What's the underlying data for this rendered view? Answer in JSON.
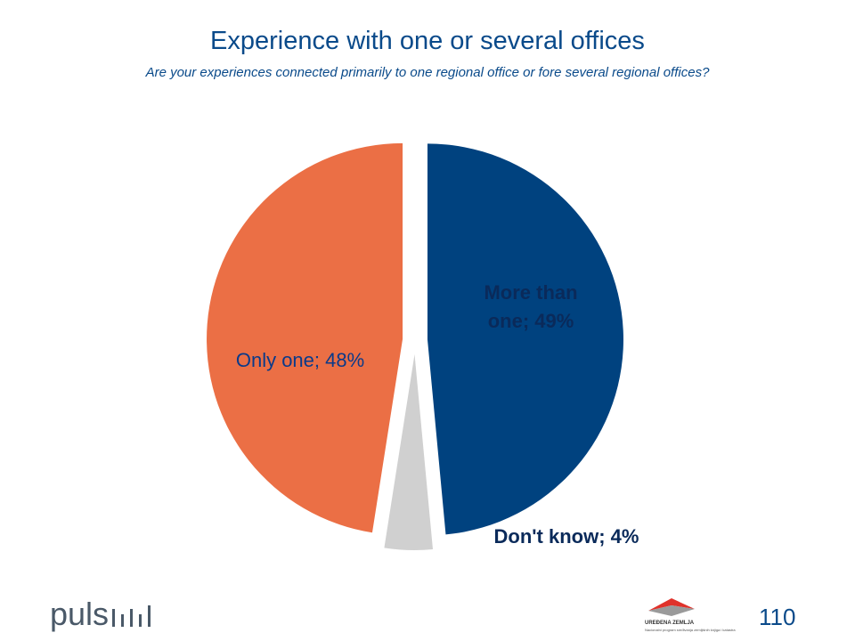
{
  "slide": {
    "title": "Experience with one or several offices",
    "subtitle": "Are your experiences connected primarily to one regional office or fore several regional offices?",
    "page_number": "110"
  },
  "footer": {
    "brand_logo_text": "puls",
    "partner_name": "UREĐENA ZEMLJA",
    "partner_subtitle": "Nacionalni program sređivanja zemljišnih knjiga i katastra"
  },
  "chart_data": {
    "type": "pie",
    "title": "Experience with one or several offices",
    "subtitle": "Are your experiences connected primarily to one regional office or fore several regional offices?",
    "slices": [
      {
        "label": "More than one; 49%",
        "name": "More than one",
        "value": 49,
        "color": "#00427f",
        "label_lines": [
          "More than",
          "one; 49%"
        ],
        "label_color": "#0a2a5a",
        "label_weight": "bold"
      },
      {
        "label": "Don't know; 4%",
        "name": "Don't know",
        "value": 4,
        "color": "#d0d0d0",
        "label_lines": [
          "Don't know; 4%"
        ],
        "label_color": "#0a2a5a",
        "label_weight": "bold"
      },
      {
        "label": "Only one; 48%",
        "name": "Only one",
        "value": 48,
        "color": "#eb6f45",
        "label_lines": [
          "Only one; 48%"
        ],
        "label_color": "#0a3a8a",
        "label_weight": "normal"
      }
    ],
    "start_angle_deg": 0,
    "exploded": true,
    "legend": "none"
  }
}
